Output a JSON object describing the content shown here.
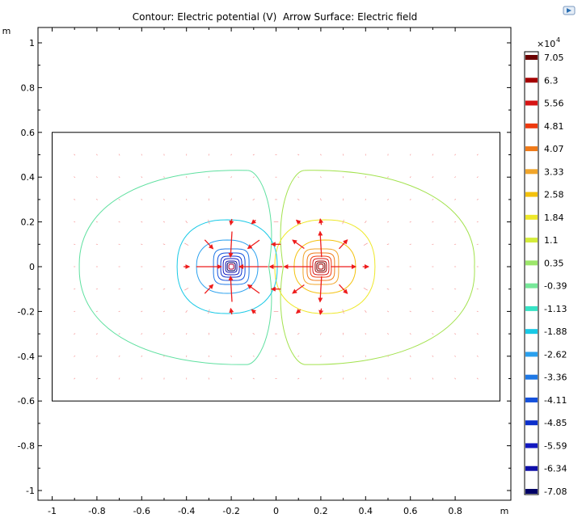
{
  "title": "Contour: Electric potential (V)  Arrow Surface: Electric field",
  "chart_data": {
    "type": "contour",
    "xlim": [
      -1.1,
      1.05
    ],
    "ylim": [
      -1.05,
      1.07
    ],
    "x_unit": "m",
    "y_unit": "m",
    "x_ticks": [
      "-1",
      "-0.8",
      "-0.6",
      "-0.4",
      "-0.2",
      "0",
      "0.2",
      "0.4",
      "0.6",
      "0.8"
    ],
    "y_ticks": [
      "1",
      "0.8",
      "0.6",
      "0.4",
      "0.2",
      "0",
      "-0.2",
      "-0.4",
      "-0.6",
      "-0.8",
      "-1"
    ],
    "domain_rect": {
      "x": [
        -1,
        1
      ],
      "y": [
        -0.6,
        0.6
      ]
    },
    "charges": [
      {
        "x": 0.2,
        "y": 0.0,
        "sign": "positive"
      },
      {
        "x": -0.2,
        "y": 0.0,
        "sign": "negative"
      }
    ],
    "colorbar": {
      "exponent_label": "×10",
      "exponent": "4",
      "labels": [
        "7.05",
        "6.3",
        "5.56",
        "4.81",
        "4.07",
        "3.33",
        "2.58",
        "1.84",
        "1.1",
        "0.35",
        "-0.39",
        "-1.13",
        "-1.88",
        "-2.62",
        "-3.36",
        "-4.11",
        "-4.85",
        "-5.59",
        "-6.34",
        "-7.08"
      ],
      "colors": [
        "#6b0000",
        "#a50000",
        "#d61414",
        "#ee3a0f",
        "#f07a18",
        "#f1a52a",
        "#f3c10c",
        "#eee82a",
        "#d4ec3a",
        "#9ce66a",
        "#77e899",
        "#36e3c5",
        "#18c9e6",
        "#2aa0ee",
        "#1e78e6",
        "#1450dc",
        "#0b2fcb",
        "#1218c0",
        "#0e0ea8",
        "#000066"
      ]
    },
    "contour_levels": [
      {
        "color": "#9ce66a",
        "center_x": 0.0,
        "radius": 0.85
      },
      {
        "color": "#77e899",
        "center_x": 0.0,
        "radius": 0.85
      }
    ]
  }
}
